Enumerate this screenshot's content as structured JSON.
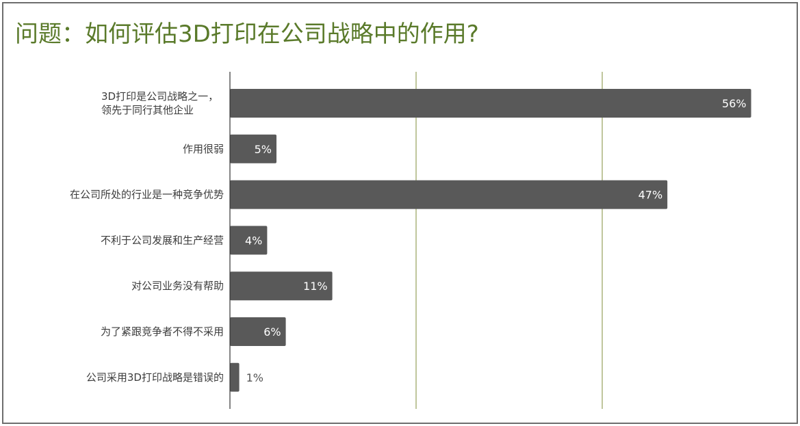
{
  "title": "问题：如何评估3D打印在公司战略中的作用?",
  "colors": {
    "bar": "#595959",
    "gridline": "#7f8c3a",
    "axis": "#333333",
    "title": "#5a7a2a"
  },
  "chart_data": {
    "type": "bar",
    "orientation": "horizontal",
    "categories": [
      "3D打印是公司战略之一，\n领先于同行其他企业",
      "作用很弱",
      "在公司所处的行业是一种竞争优势",
      "不利于公司发展和生产经营",
      "对公司业务没有帮助",
      "为了紧跟竞争者不得不采用",
      "公司采用3D打印战略是错误的"
    ],
    "values": [
      56,
      5,
      47,
      4,
      11,
      6,
      1
    ],
    "value_labels": [
      "56%",
      "5%",
      "47%",
      "4%",
      "11%",
      "6%",
      "1%"
    ],
    "xlim": [
      0,
      60
    ],
    "gridlines": [
      20,
      40
    ],
    "grid": true,
    "legend": "none"
  }
}
